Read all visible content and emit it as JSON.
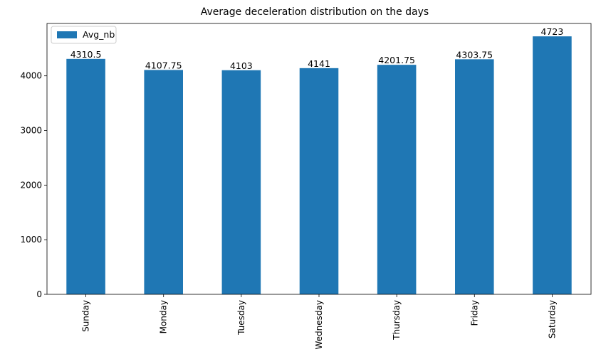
{
  "chart_data": {
    "type": "bar",
    "title": "Average deceleration distribution on the days",
    "xlabel": "",
    "ylabel": "",
    "categories": [
      "Sunday",
      "Monday",
      "Tuesday",
      "Wednesday",
      "Thursday",
      "Friday",
      "Saturday"
    ],
    "series": [
      {
        "name": "Avg_nb",
        "values": [
          4310.5,
          4107.75,
          4103,
          4141,
          4201.75,
          4303.75,
          4723
        ],
        "labels": [
          "4310.5",
          "4107.75",
          "4103",
          "4141",
          "4201.75",
          "4303.75",
          "4723"
        ],
        "color": "#1f77b4"
      }
    ],
    "ylim": [
      0,
      4959
    ],
    "yticks": [
      0,
      1000,
      2000,
      3000,
      4000
    ],
    "ytick_labels": [
      "0",
      "1000",
      "2000",
      "3000",
      "4000"
    ],
    "grid": false,
    "legend": {
      "position": "top-left"
    },
    "x_tick_rotation": "vertical"
  }
}
